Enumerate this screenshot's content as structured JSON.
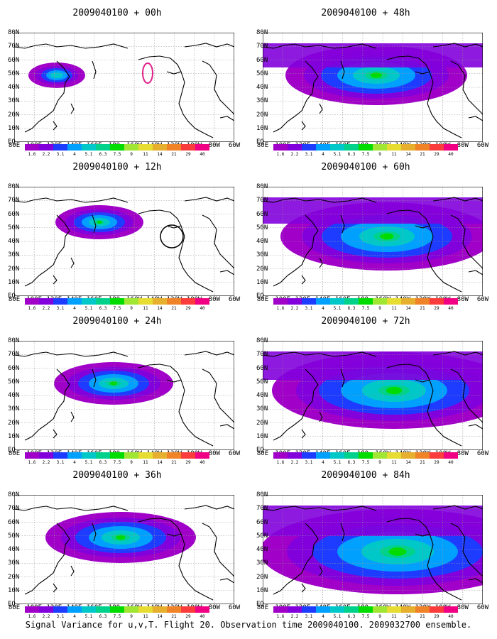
{
  "panels": [
    {
      "title": "2009040100 + 00h",
      "spread": 0,
      "center": [
        150,
        60
      ],
      "peak": "magenta-box"
    },
    {
      "title": "2009040100 + 48h",
      "spread": 4,
      "center": [
        150,
        160
      ],
      "peak": "none"
    },
    {
      "title": "2009040100 + 12h",
      "spread": 1,
      "center": [
        140,
        120
      ],
      "peak": "black-circle"
    },
    {
      "title": "2009040100 + 60h",
      "spread": 5,
      "center": [
        160,
        175
      ],
      "peak": "none"
    },
    {
      "title": "2009040100 + 24h",
      "spread": 2,
      "center": [
        150,
        140
      ],
      "peak": "none"
    },
    {
      "title": "2009040100 + 72h",
      "spread": 6,
      "center": [
        160,
        185
      ],
      "peak": "none"
    },
    {
      "title": "2009040100 + 36h",
      "spread": 3,
      "center": [
        150,
        150
      ],
      "peak": "none"
    },
    {
      "title": "2009040100 + 84h",
      "spread": 7,
      "center": [
        170,
        190
      ],
      "peak": "none"
    }
  ],
  "y_labels": [
    "80N",
    "70N",
    "60N",
    "50N",
    "40N",
    "30N",
    "20N",
    "10N",
    "EQ"
  ],
  "x_labels": [
    "80E",
    "100E",
    "120E",
    "140E",
    "160E",
    "180",
    "160W",
    "140W",
    "120W",
    "100W",
    "80W",
    "60W"
  ],
  "colorbar": {
    "colors": [
      "#a000c8",
      "#8200dc",
      "#1e3cff",
      "#00a0ff",
      "#00c8c8",
      "#00d28c",
      "#00dc00",
      "#a0e632",
      "#e6dc32",
      "#e6af2d",
      "#f08228",
      "#fa3c3c",
      "#f00082"
    ],
    "labels": [
      "1.6",
      "2.2",
      "3.1",
      "4",
      "5.1",
      "6.3",
      "7.5",
      "9",
      "11",
      "14",
      "21",
      "29",
      "40"
    ]
  },
  "caption": "Signal Variance for u,v,T. Flight 20. Observation time 2009040100. 2009032700 ensemble."
}
